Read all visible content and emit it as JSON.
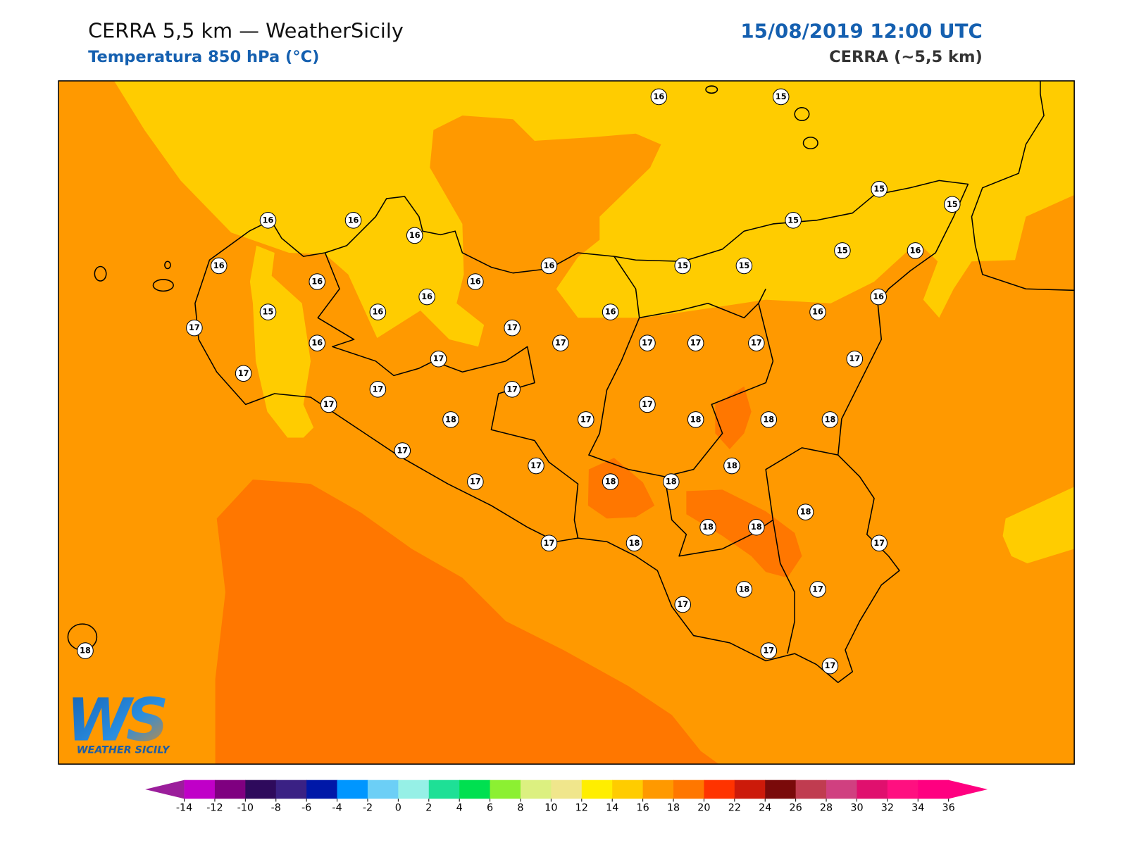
{
  "header": {
    "title": "CERRA 5,5 km — WeatherSicily",
    "subtitle": "Temperatura 850 hPa (°C)",
    "datetime": "15/08/2019 12:00 UTC",
    "model": "CERRA (~5,5 km)"
  },
  "stations": {
    "values": [
      16,
      15,
      16,
      16,
      16,
      16,
      16,
      16,
      16,
      15,
      15,
      15,
      15,
      15,
      15,
      16,
      15,
      16,
      16,
      17,
      16,
      17,
      17,
      16,
      17,
      17,
      17,
      16,
      16,
      17,
      17,
      17,
      17,
      17,
      17,
      18,
      17,
      17,
      18,
      18,
      18,
      17,
      17,
      18,
      17,
      18,
      18,
      18,
      18,
      18,
      17,
      18,
      17,
      17,
      18,
      17,
      17,
      17,
      18
    ]
  },
  "colorbar": {
    "ticks": [
      -14,
      -12,
      -10,
      -8,
      -6,
      -4,
      -2,
      0,
      2,
      4,
      6,
      8,
      10,
      12,
      14,
      16,
      18,
      20,
      22,
      24,
      26,
      28,
      30,
      32,
      34,
      36
    ],
    "colors": [
      "#c000c8",
      "#7f0080",
      "#2e0a5c",
      "#3a2184",
      "#0018a8",
      "#0096ff",
      "#6ccff6",
      "#96f0e6",
      "#1ee096",
      "#00e050",
      "#8cf032",
      "#dcf080",
      "#f0e68c",
      "#ffee00",
      "#ffcc00",
      "#ff9900",
      "#ff7700",
      "#ff3300",
      "#cc1a0a",
      "#7a0a0a",
      "#c03c50",
      "#d04080",
      "#e0106e",
      "#ff1080",
      "#ff0080"
    ],
    "under_color": "#9b1e9b",
    "over_color": "#ff0080"
  },
  "logo": {
    "mark": "WS",
    "name": "WEATHER SICILY"
  }
}
